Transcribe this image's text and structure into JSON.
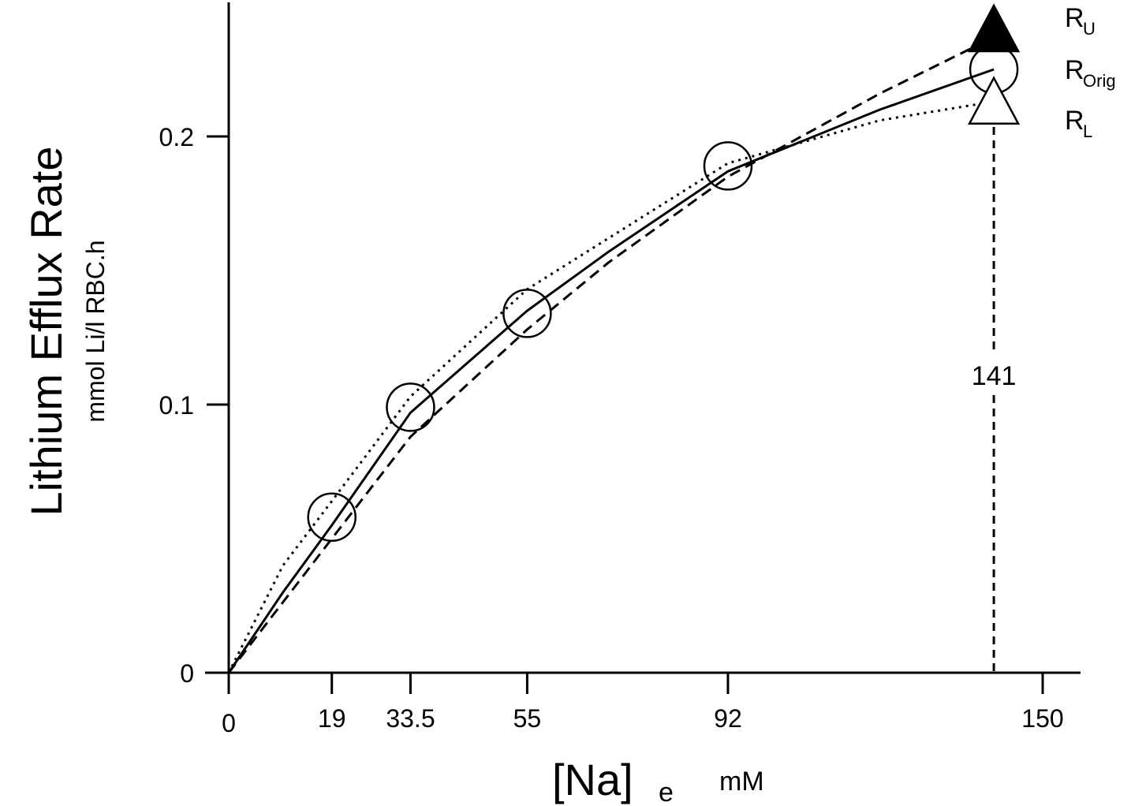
{
  "chart_data": {
    "type": "line",
    "y_title": "Lithium Efflux Rate",
    "y_subtitle": "mmol Li/l RBC.h",
    "x_label": {
      "text": "[Na]",
      "subscript": "e",
      "unit": "mM"
    },
    "xlim": [
      0,
      150
    ],
    "ylim": [
      0,
      0.25
    ],
    "xticks": [
      0,
      19,
      33.5,
      55,
      92,
      150
    ],
    "yticks": [
      0,
      0.1,
      0.2
    ],
    "series": [
      {
        "style": "solid",
        "color": "#000000",
        "x": [
          0,
          10,
          19,
          33.5,
          55,
          70,
          92,
          120,
          141
        ],
        "values": [
          0,
          0.03,
          0.055,
          0.097,
          0.135,
          0.157,
          0.187,
          0.21,
          0.225
        ]
      },
      {
        "style": "dashed",
        "color": "#000000",
        "x": [
          0,
          19,
          33.5,
          55,
          70,
          92,
          120,
          141
        ],
        "values": [
          0,
          0.05,
          0.088,
          0.128,
          0.153,
          0.185,
          0.216,
          0.237
        ]
      },
      {
        "style": "dotted",
        "color": "#000000",
        "x": [
          0,
          10,
          19,
          33.5,
          55,
          92,
          120,
          141
        ],
        "values": [
          0,
          0.04,
          0.064,
          0.103,
          0.143,
          0.19,
          0.206,
          0.213
        ]
      }
    ],
    "points": {
      "x": [
        19,
        33.5,
        55,
        92,
        141
      ],
      "values": [
        0.058,
        0.099,
        0.134,
        0.189,
        0.225
      ]
    },
    "end_markers": [
      {
        "label": "R",
        "subscript": "U",
        "shape": "filled-triangle",
        "x": 141,
        "y": 0.24
      },
      {
        "label": "R",
        "subscript": "Orig",
        "shape": "circle",
        "x": 141,
        "y": 0.225
      },
      {
        "label": "R",
        "subscript": "L",
        "shape": "open-triangle",
        "x": 141,
        "y": 0.213
      }
    ],
    "reference_line": {
      "x": 141
    }
  }
}
